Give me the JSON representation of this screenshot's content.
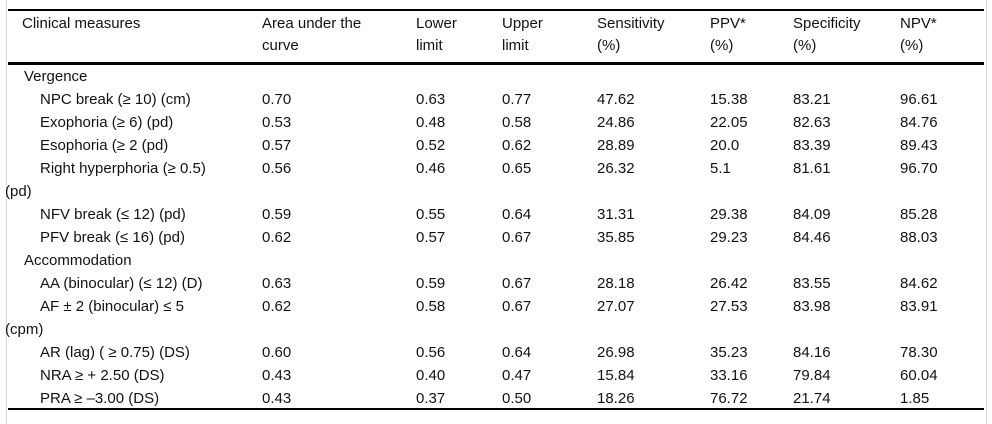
{
  "table": {
    "columns": [
      {
        "line1": "Clinical measures",
        "line2": ""
      },
      {
        "line1": "Area under the",
        "line2": "curve"
      },
      {
        "line1": "Lower",
        "line2": "limit"
      },
      {
        "line1": "Upper",
        "line2": "limit"
      },
      {
        "line1": "Sensitivity",
        "line2": "(%)"
      },
      {
        "line1": "PPV*",
        "line2": "(%)"
      },
      {
        "line1": "Specificity",
        "line2": "(%)"
      },
      {
        "line1": "NPV*",
        "line2": "(%)"
      }
    ],
    "rows": [
      {
        "type": "section",
        "label": "Vergence"
      },
      {
        "type": "measure",
        "label": "NPC break (≥ 10) (cm)",
        "values": [
          "0.70",
          "0.63",
          "0.77",
          "47.62",
          "15.38",
          "83.21",
          "96.61"
        ]
      },
      {
        "type": "measure",
        "label": "Exophoria (≥ 6) (pd)",
        "values": [
          "0.53",
          "0.48",
          "0.58",
          "24.86",
          "22.05",
          "82.63",
          "84.76"
        ]
      },
      {
        "type": "measure",
        "label": "Esophoria (≥ 2 (pd)",
        "values": [
          "0.57",
          "0.52",
          "0.62",
          "28.89",
          "20.0",
          "83.39",
          "89.43"
        ]
      },
      {
        "type": "measure",
        "label": "Right hyperphoria (≥ 0.5)",
        "wrap": "(pd)",
        "values": [
          "0.56",
          "0.46",
          "0.65",
          "26.32",
          "5.1",
          "81.61",
          "96.70"
        ]
      },
      {
        "type": "measure",
        "label": "NFV break (≤ 12) (pd)",
        "values": [
          "0.59",
          "0.55",
          "0.64",
          "31.31",
          "29.38",
          "84.09",
          "85.28"
        ]
      },
      {
        "type": "measure",
        "label": "PFV break (≤ 16) (pd)",
        "values": [
          "0.62",
          "0.57",
          "0.67",
          "35.85",
          "29.23",
          "84.46",
          "88.03"
        ]
      },
      {
        "type": "section",
        "label": "Accommodation"
      },
      {
        "type": "measure",
        "label": "AA (binocular) (≤ 12) (D)",
        "values": [
          "0.63",
          "0.59",
          "0.67",
          "28.18",
          "26.42",
          "83.55",
          "84.62"
        ]
      },
      {
        "type": "measure",
        "label": "AF ± 2 (binocular) ≤ 5",
        "wrap": "(cpm)",
        "values": [
          "0.62",
          "0.58",
          "0.67",
          "27.07",
          "27.53",
          "83.98",
          "83.91"
        ]
      },
      {
        "type": "measure",
        "label": "AR (lag) ( ≥ 0.75) (DS)",
        "values": [
          "0.60",
          "0.56",
          "0.64",
          "26.98",
          "35.23",
          "84.16",
          "78.30"
        ]
      },
      {
        "type": "measure",
        "label": "NRA ≥ + 2.50 (DS)",
        "values": [
          "0.43",
          "0.40",
          "0.47",
          "15.84",
          "33.16",
          "79.84",
          "60.04"
        ]
      },
      {
        "type": "measure",
        "label": "PRA ≥ –3.00 (DS)",
        "values": [
          "0.43",
          "0.37",
          "0.50",
          "18.26",
          "76.72",
          "21.74",
          "1.85"
        ]
      }
    ]
  }
}
